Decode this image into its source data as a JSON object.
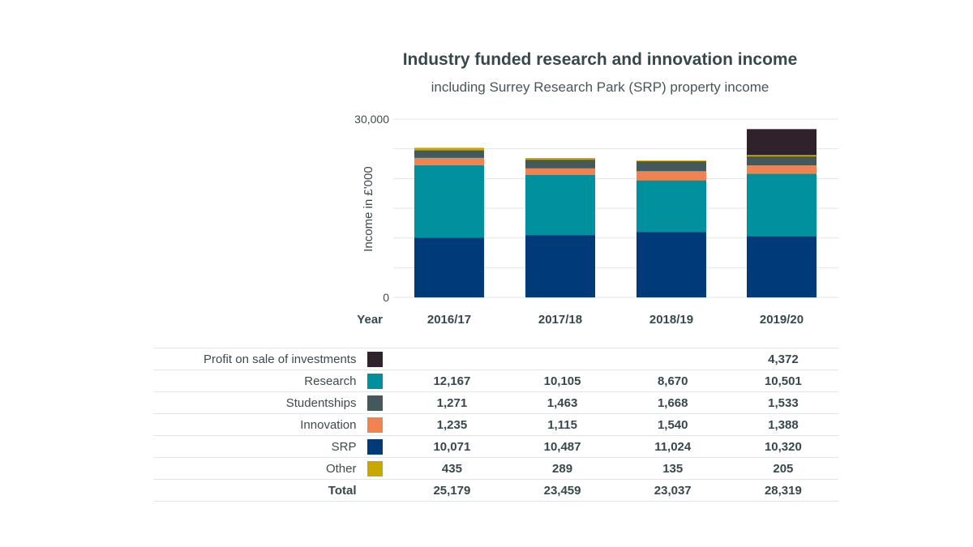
{
  "chart_data": {
    "type": "bar",
    "stacked": true,
    "title": "Industry funded research and innovation income",
    "subtitle": "including Surrey Research Park (SRP) property income",
    "ylabel": "Income in £'000",
    "xlabel": "Year",
    "ylim": [
      0,
      30000
    ],
    "y_tick_labels": [
      "0",
      "30,000"
    ],
    "categories": [
      "2016/17",
      "2017/18",
      "2018/19",
      "2019/20"
    ],
    "series": [
      {
        "name": "SRP",
        "color": "#013a78",
        "values": [
          10071,
          10487,
          11024,
          10320
        ],
        "labels": [
          "10,071",
          "10,487",
          "11,024",
          "10,320"
        ]
      },
      {
        "name": "Research",
        "color": "#00909e",
        "values": [
          12167,
          10105,
          8670,
          10501
        ],
        "labels": [
          "12,167",
          "10,105",
          "8,670",
          "10,501"
        ]
      },
      {
        "name": "Innovation",
        "color": "#f0834f",
        "values": [
          1235,
          1115,
          1540,
          1388
        ],
        "labels": [
          "1,235",
          "1,115",
          "1,540",
          "1,388"
        ]
      },
      {
        "name": "Studentships",
        "color": "#44595b",
        "values": [
          1271,
          1463,
          1668,
          1533
        ],
        "labels": [
          "1,271",
          "1,463",
          "1,668",
          "1,533"
        ]
      },
      {
        "name": "Other",
        "color": "#c8a800",
        "values": [
          435,
          289,
          135,
          205
        ],
        "labels": [
          "435",
          "289",
          "135",
          "205"
        ]
      },
      {
        "name": "Profit on sale of investments",
        "color": "#2f222c",
        "values": [
          0,
          0,
          0,
          4372
        ],
        "labels": [
          "",
          "",
          "",
          "4,372"
        ]
      }
    ],
    "table_order": [
      "Profit on sale of investments",
      "Research",
      "Studentships",
      "Innovation",
      "SRP",
      "Other"
    ],
    "total": {
      "name": "Total",
      "values": [
        25179,
        23459,
        23037,
        28319
      ],
      "labels": [
        "25,179",
        "23,459",
        "23,037",
        "28,319"
      ]
    },
    "grid": true
  }
}
